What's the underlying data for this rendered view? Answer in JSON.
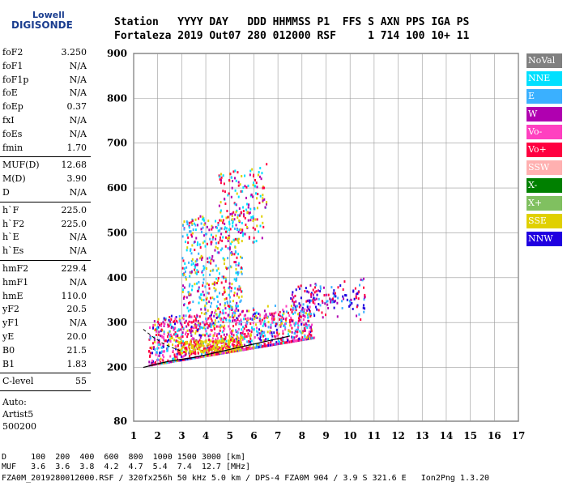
{
  "logo": {
    "line1": "Lowell",
    "line2": "DIGISONDE"
  },
  "header": {
    "labels": "Station   YYYY DAY   DDD HHMMSS P1  FFS S AXN PPS IGA PS",
    "values": "Fortaleza 2019 Out07 280 012000 RSF     1 714 100 10+ 11"
  },
  "params": {
    "group1": [
      {
        "k": "foF2",
        "v": "3.250"
      },
      {
        "k": "foF1",
        "v": "N/A"
      },
      {
        "k": "foF1p",
        "v": "N/A"
      },
      {
        "k": "foE",
        "v": "N/A"
      },
      {
        "k": "foEp",
        "v": "0.37"
      },
      {
        "k": "fxI",
        "v": "N/A"
      },
      {
        "k": "foEs",
        "v": "N/A"
      },
      {
        "k": "fmin",
        "v": "1.70"
      }
    ],
    "group2": [
      {
        "k": "MUF(D)",
        "v": "12.68"
      },
      {
        "k": "M(D)",
        "v": "3.90"
      },
      {
        "k": "D",
        "v": "N/A"
      }
    ],
    "group3": [
      {
        "k": "h`F",
        "v": "225.0"
      },
      {
        "k": "h`F2",
        "v": "225.0"
      },
      {
        "k": "h`E",
        "v": "N/A"
      },
      {
        "k": "h`Es",
        "v": "N/A"
      }
    ],
    "group4": [
      {
        "k": "hmF2",
        "v": "229.4"
      },
      {
        "k": "hmF1",
        "v": "N/A"
      },
      {
        "k": "hmE",
        "v": "110.0"
      },
      {
        "k": "yF2",
        "v": "20.5"
      },
      {
        "k": "yF1",
        "v": "N/A"
      },
      {
        "k": "yE",
        "v": "20.0"
      },
      {
        "k": "B0",
        "v": "21.5"
      },
      {
        "k": "B1",
        "v": "1.83"
      }
    ],
    "group5": [
      {
        "k": "C-level",
        "v": "55"
      }
    ],
    "group6": [
      "Auto:",
      "Artist5",
      "500200"
    ]
  },
  "legend": [
    {
      "label": "NoVal",
      "color": "#808080"
    },
    {
      "label": "NNE",
      "color": "#00e0ff"
    },
    {
      "label": "E",
      "color": "#3ab0ff"
    },
    {
      "label": "W",
      "color": "#b000b0"
    },
    {
      "label": "Vo-",
      "color": "#ff40c0"
    },
    {
      "label": "Vo+",
      "color": "#ff0040"
    },
    {
      "label": "SSW",
      "color": "#ffb0b0"
    },
    {
      "label": "X-",
      "color": "#008000"
    },
    {
      "label": "X+",
      "color": "#80c060"
    },
    {
      "label": "SSE",
      "color": "#e0d000"
    },
    {
      "label": "NNW",
      "color": "#2000e0"
    }
  ],
  "chart_data": {
    "type": "scatter",
    "xlim": [
      1,
      17
    ],
    "ylim": [
      80,
      900
    ],
    "xticks": [
      "1",
      "2",
      "3",
      "4",
      "5",
      "6",
      "7",
      "8",
      "9",
      "10",
      "11",
      "12",
      "13",
      "14",
      "15",
      "16",
      "17"
    ],
    "yticks": [
      {
        "v": 200,
        "label": "200"
      },
      {
        "v": 300,
        "label": "300"
      },
      {
        "v": 400,
        "label": "400"
      },
      {
        "v": 500,
        "label": "500"
      },
      {
        "v": 600,
        "label": "600"
      },
      {
        "v": 700,
        "label": "700"
      },
      {
        "v": 800,
        "label": "800"
      },
      {
        "v": 900,
        "label": "900"
      },
      {
        "v": 80,
        "label": "80"
      }
    ],
    "grid": true,
    "trace_x": [
      1.4,
      2,
      2.5,
      3,
      3.5,
      4,
      4.5,
      5,
      5.5,
      6,
      6.5,
      7,
      7.5
    ],
    "trace_y": [
      200,
      208,
      214,
      218,
      222,
      228,
      234,
      240,
      246,
      252,
      258,
      264,
      270
    ],
    "dashed_x": [
      1.4,
      1.8,
      2.2,
      2.6,
      3.0
    ],
    "dashed_y": [
      285,
      268,
      254,
      244,
      236
    ]
  },
  "bottom": {
    "line1": "D     100  200  400  600  800  1000 1500 3000 [km]",
    "line2": "MUF   3.6  3.6  3.8  4.2  4.7  5.4  7.4  12.7 [MHz]",
    "line3": "FZA0M_2019280012000.RSF / 320fx256h 50 kHz 5.0 km / DPS-4 FZA0M 904 / 3.9 S 321.6 E   Ion2Png 1.3.20"
  }
}
